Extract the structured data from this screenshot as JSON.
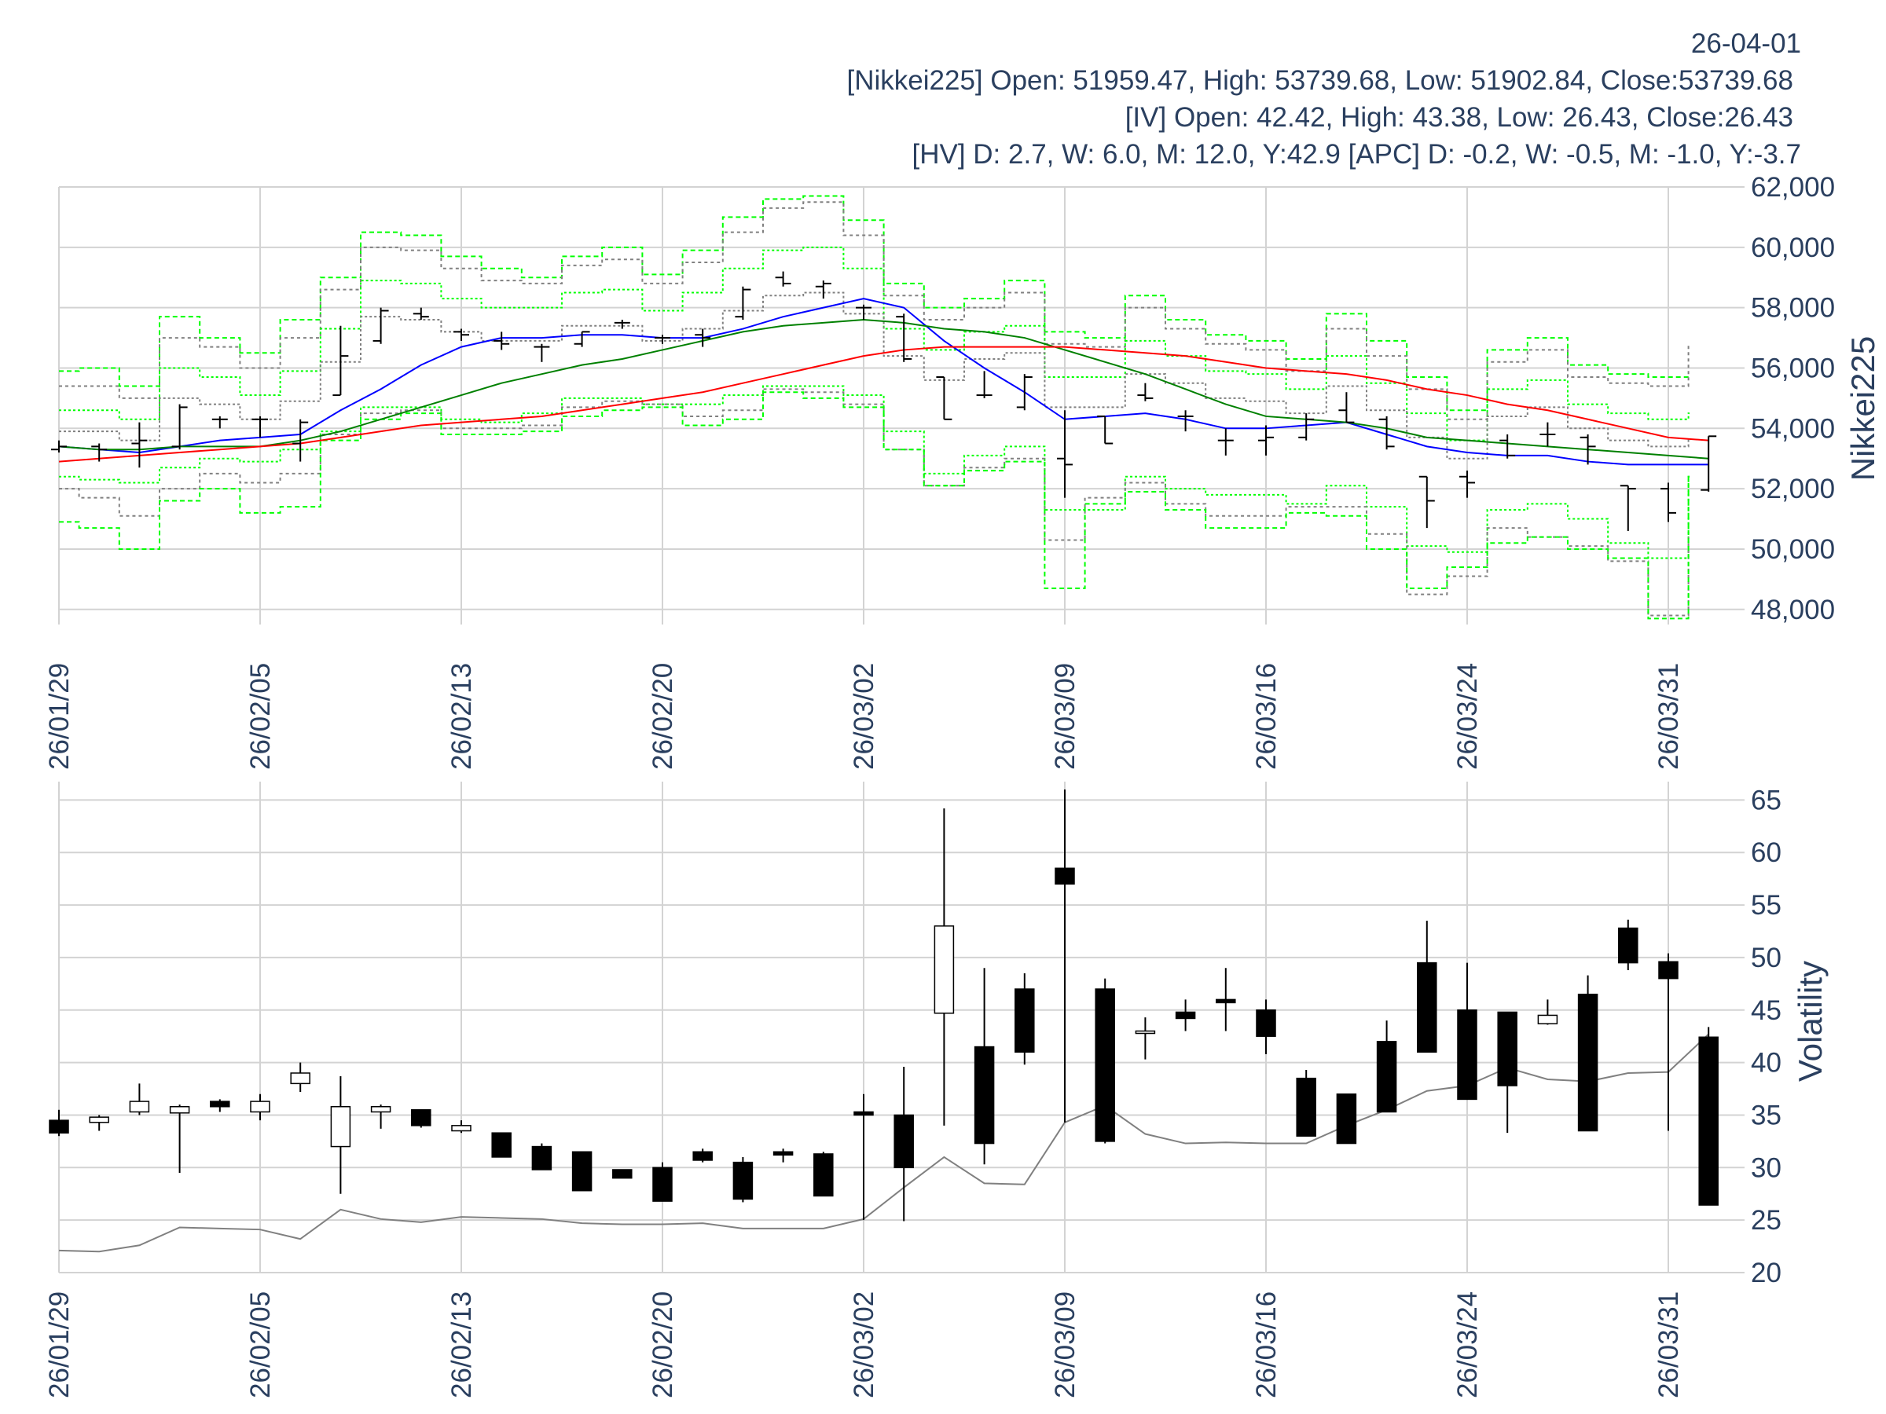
{
  "header": {
    "date": "26-04-01",
    "nikkei_line": "[Nikkei225] Open: 51959.47, High: 53739.68, Low: 51902.84, Close:53739.68",
    "iv_line": "[IV] Open: 42.42, High: 43.38, Low: 26.43, Close:26.43",
    "hv_line": "[HV] D: 2.7, W: 6.0, M: 12.0, Y:42.9 [APC] D: -0.2, W: -0.5, M: -1.0, Y:-3.7"
  },
  "colors": {
    "grid": "#d3d3d3",
    "axis_text": "#2a3f5f",
    "ohlc": "#000000",
    "ma_short": "#0000ff",
    "ma_mid": "#008000",
    "ma_long": "#ff0000",
    "band_green": "#00ff00",
    "band_gray": "#808080",
    "hv_line": "#808080",
    "candle_up_fill": "#ffffff",
    "candle_down_fill": "#000000"
  },
  "chart_data": [
    {
      "type": "ohlc",
      "ylabel": "Nikkei225",
      "ylim": [
        47500,
        62000
      ],
      "y_ticks": [
        "48,000",
        "50,000",
        "52,000",
        "54,000",
        "56,000",
        "58,000",
        "60,000",
        "62,000"
      ],
      "y_tick_values": [
        48000,
        50000,
        52000,
        54000,
        56000,
        58000,
        60000,
        62000
      ],
      "x_tick_labels": [
        "26/01/29",
        "26/02/05",
        "26/02/13",
        "26/02/20",
        "26/03/02",
        "26/03/09",
        "26/03/16",
        "26/03/24",
        "26/03/31"
      ],
      "x_tick_index": [
        0,
        5,
        10,
        15,
        20,
        25,
        30,
        35,
        40
      ],
      "grid": true,
      "ohlc": [
        [
          53300,
          53600,
          53200,
          53400
        ],
        [
          53400,
          53500,
          52900,
          53300
        ],
        [
          53500,
          54200,
          52700,
          53600
        ],
        [
          53400,
          54800,
          53300,
          54700
        ],
        [
          54300,
          54400,
          54000,
          54300
        ],
        [
          54300,
          54400,
          53700,
          54300
        ],
        [
          53500,
          54300,
          52900,
          54200
        ],
        [
          55100,
          57400,
          55100,
          56400
        ],
        [
          56900,
          58000,
          56800,
          57900
        ],
        [
          57800,
          58000,
          57600,
          57700
        ],
        [
          57200,
          57300,
          56900,
          57100
        ],
        [
          56900,
          57200,
          56600,
          56800
        ],
        [
          56700,
          56800,
          56200,
          56700
        ],
        [
          56800,
          57200,
          56700,
          57200
        ],
        [
          57500,
          57600,
          57300,
          57500
        ],
        [
          57000,
          57100,
          56800,
          57000
        ],
        [
          57100,
          57300,
          56700,
          57000
        ],
        [
          57700,
          58700,
          57600,
          58600
        ],
        [
          59000,
          59200,
          58700,
          58800
        ],
        [
          58700,
          58900,
          58300,
          58800
        ],
        [
          58000,
          58100,
          57600,
          58000
        ],
        [
          57700,
          57800,
          56200,
          56300
        ],
        [
          55700,
          55700,
          54300,
          54300
        ],
        [
          55100,
          55900,
          55000,
          55100
        ],
        [
          54700,
          55800,
          54600,
          55700
        ],
        [
          53000,
          54600,
          51700,
          52800
        ],
        [
          54400,
          54400,
          53500,
          53500
        ],
        [
          55100,
          55500,
          54900,
          55000
        ],
        [
          54400,
          54600,
          53900,
          54400
        ],
        [
          53600,
          54000,
          53100,
          53600
        ],
        [
          53600,
          54100,
          53100,
          53700
        ],
        [
          53700,
          54500,
          53600,
          54300
        ],
        [
          54600,
          55200,
          54200,
          54200
        ],
        [
          54300,
          54400,
          53300,
          53400
        ],
        [
          52400,
          52400,
          50700,
          51600
        ],
        [
          52400,
          52600,
          51700,
          52200
        ],
        [
          53600,
          53800,
          53000,
          53100
        ],
        [
          53800,
          54200,
          53400,
          53800
        ],
        [
          53700,
          53800,
          52800,
          53400
        ],
        [
          52100,
          52100,
          50600,
          52000
        ],
        [
          52000,
          52200,
          50900,
          51200
        ],
        [
          51959.47,
          53739.68,
          51902.84,
          53739.68
        ]
      ],
      "moving_averages": [
        {
          "color_key": "ma_short",
          "values": [
            53400,
            53300,
            53200,
            53400,
            53600,
            53700,
            53800,
            54600,
            55300,
            56100,
            56700,
            57000,
            57000,
            57100,
            57100,
            57000,
            57000,
            57300,
            57700,
            58000,
            58300,
            58000,
            56900,
            56000,
            55200,
            54300,
            54400,
            54500,
            54300,
            54000,
            54000,
            54100,
            54200,
            53800,
            53400,
            53200,
            53100,
            53100,
            52900,
            52800,
            52800,
            52800
          ]
        },
        {
          "color_key": "ma_mid",
          "values": [
            53400,
            53300,
            53300,
            53400,
            53400,
            53400,
            53600,
            53900,
            54300,
            54700,
            55100,
            55500,
            55800,
            56100,
            56300,
            56600,
            56900,
            57200,
            57400,
            57500,
            57600,
            57500,
            57300,
            57200,
            57000,
            56600,
            56200,
            55800,
            55300,
            54800,
            54400,
            54300,
            54200,
            54000,
            53700,
            53600,
            53500,
            53400,
            53300,
            53200,
            53100,
            53000
          ]
        },
        {
          "color_key": "ma_long",
          "values": [
            52900,
            53000,
            53100,
            53200,
            53300,
            53400,
            53500,
            53700,
            53900,
            54100,
            54200,
            54300,
            54400,
            54600,
            54800,
            55000,
            55200,
            55500,
            55800,
            56100,
            56400,
            56600,
            56700,
            56700,
            56700,
            56700,
            56600,
            56500,
            56400,
            56200,
            56000,
            55900,
            55800,
            55600,
            55300,
            55100,
            54800,
            54600,
            54300,
            54000,
            53700,
            53600
          ]
        }
      ],
      "bands": [
        {
          "color_key": "band_green",
          "dash": "6,4",
          "values": [
            55900,
            56000,
            55400,
            57700,
            57000,
            56500,
            57600,
            59000,
            60500,
            60400,
            59700,
            59300,
            59000,
            59700,
            60000,
            59100,
            59900,
            61000,
            61600,
            61700,
            60900,
            58800,
            58000,
            58300,
            58900,
            57200,
            57000,
            58400,
            57600,
            57100,
            56900,
            56300,
            57800,
            56900,
            55700,
            54600,
            56600,
            57000,
            56100,
            55800,
            55700,
            55700
          ]
        },
        {
          "color_key": "band_gray",
          "dash": "4,4",
          "values": [
            55400,
            55400,
            55000,
            57000,
            56700,
            56000,
            57000,
            58600,
            60000,
            59900,
            59300,
            58900,
            58800,
            59400,
            59600,
            58800,
            59500,
            60500,
            61300,
            61500,
            60400,
            58400,
            57600,
            58000,
            58500,
            56800,
            56700,
            58000,
            57300,
            56800,
            56600,
            55900,
            57300,
            56400,
            55300,
            54300,
            56200,
            56600,
            55700,
            55500,
            55400,
            56800
          ]
        },
        {
          "color_key": "band_green",
          "dash": "3,3",
          "values": [
            54600,
            54600,
            54300,
            56000,
            55700,
            55100,
            55900,
            57300,
            58900,
            58800,
            58300,
            58000,
            58000,
            58500,
            58600,
            57900,
            58500,
            59300,
            59900,
            60000,
            59300,
            57300,
            56600,
            57200,
            57400,
            55700,
            55700,
            56900,
            56400,
            55900,
            55800,
            55300,
            56400,
            55500,
            54500,
            53600,
            55300,
            55600,
            54800,
            54500,
            54300,
            54500
          ]
        },
        {
          "color_key": "band_gray",
          "dash": "3,3",
          "values": [
            53900,
            53900,
            53600,
            55000,
            54800,
            54300,
            54900,
            56200,
            57700,
            57600,
            57200,
            56900,
            56900,
            57400,
            57400,
            56900,
            57300,
            57900,
            58400,
            58500,
            57800,
            56400,
            55600,
            56300,
            56500,
            54700,
            54700,
            55800,
            55500,
            55000,
            54900,
            54500,
            55400,
            54600,
            53700,
            53000,
            54400,
            54700,
            54000,
            53600,
            53400,
            53600
          ]
        },
        {
          "color_key": "band_green",
          "dash": "3,3",
          "values": [
            52400,
            52300,
            52200,
            52700,
            53000,
            52900,
            53300,
            53900,
            54700,
            54700,
            54300,
            54200,
            54500,
            55000,
            55000,
            54800,
            54800,
            55100,
            55400,
            55400,
            55100,
            53900,
            52500,
            53100,
            53400,
            51300,
            51300,
            52400,
            52000,
            51800,
            51800,
            51500,
            52100,
            51400,
            50100,
            49900,
            51300,
            51500,
            51000,
            50200,
            49700,
            52400
          ]
        },
        {
          "color_key": "band_gray",
          "dash": "4,4",
          "values": [
            52000,
            51700,
            51100,
            52000,
            52500,
            52200,
            52500,
            53800,
            54500,
            54600,
            54000,
            54000,
            54100,
            54700,
            54900,
            54800,
            54400,
            54600,
            55300,
            55200,
            54800,
            53300,
            52100,
            52700,
            53000,
            50300,
            51700,
            52200,
            51500,
            51100,
            51100,
            51400,
            51400,
            50500,
            48500,
            49100,
            50700,
            50400,
            50100,
            49600,
            47800,
            50400
          ]
        },
        {
          "color_key": "band_green",
          "dash": "6,4",
          "values": [
            50900,
            50700,
            50000,
            51600,
            52000,
            51200,
            51400,
            53600,
            54300,
            54500,
            53800,
            53800,
            53900,
            54400,
            54600,
            54700,
            54100,
            54300,
            55200,
            55000,
            54700,
            53300,
            52100,
            52600,
            52900,
            48700,
            51500,
            51900,
            51300,
            50700,
            50700,
            51200,
            51100,
            50000,
            48700,
            49400,
            50200,
            50400,
            50000,
            49700,
            47700,
            52400
          ]
        }
      ]
    },
    {
      "type": "candlestick",
      "ylabel": "Volatility",
      "ylim": [
        20,
        66
      ],
      "y_ticks": [
        "20",
        "25",
        "30",
        "35",
        "40",
        "45",
        "50",
        "55",
        "60",
        "65"
      ],
      "y_tick_values": [
        20,
        25,
        30,
        35,
        40,
        45,
        50,
        55,
        60,
        65
      ],
      "x_tick_labels": [
        "26/01/29",
        "26/02/05",
        "26/02/13",
        "26/02/20",
        "26/03/02",
        "26/03/09",
        "26/03/16",
        "26/03/24",
        "26/03/31"
      ],
      "x_tick_index": [
        0,
        5,
        10,
        15,
        20,
        25,
        30,
        35,
        40
      ],
      "grid": true,
      "candles": [
        [
          34.5,
          35.5,
          33.0,
          33.3
        ],
        [
          34.3,
          35.0,
          33.5,
          34.8
        ],
        [
          35.3,
          38.0,
          35.0,
          36.3
        ],
        [
          35.2,
          36.0,
          29.5,
          35.8
        ],
        [
          36.3,
          36.5,
          35.3,
          35.8
        ],
        [
          35.3,
          37.0,
          34.5,
          36.3
        ],
        [
          38.0,
          40.0,
          37.2,
          39.0
        ],
        [
          32.0,
          38.7,
          27.5,
          35.8
        ],
        [
          35.3,
          36.0,
          33.7,
          35.8
        ],
        [
          35.5,
          35.5,
          33.8,
          34.0
        ],
        [
          33.5,
          34.5,
          33.3,
          34.0
        ],
        [
          33.3,
          33.3,
          31.0,
          31.0
        ],
        [
          32.0,
          32.3,
          29.8,
          29.8
        ],
        [
          31.5,
          31.5,
          27.8,
          27.8
        ],
        [
          29.8,
          29.8,
          29.0,
          29.0
        ],
        [
          30.0,
          30.5,
          26.8,
          26.8
        ],
        [
          31.5,
          31.8,
          30.5,
          30.7
        ],
        [
          30.5,
          31.0,
          26.7,
          27.0
        ],
        [
          31.5,
          31.8,
          30.5,
          31.2
        ],
        [
          31.3,
          31.5,
          27.3,
          27.3
        ],
        [
          35.3,
          37.0,
          25.0,
          35.0
        ],
        [
          35.0,
          39.6,
          24.9,
          30.0
        ],
        [
          44.7,
          64.2,
          34.0,
          53.0
        ],
        [
          41.5,
          49.0,
          30.3,
          32.3
        ],
        [
          47.0,
          48.5,
          39.8,
          41.0
        ],
        [
          58.5,
          66.0,
          34.3,
          57.0
        ],
        [
          47.0,
          48.0,
          32.3,
          32.5
        ],
        [
          42.8,
          44.3,
          40.3,
          43.0
        ],
        [
          44.8,
          46.0,
          43.0,
          44.2
        ],
        [
          46.0,
          49.0,
          43.0,
          45.7
        ],
        [
          45.0,
          46.0,
          40.8,
          42.5
        ],
        [
          38.5,
          39.3,
          33.0,
          33.0
        ],
        [
          37.0,
          37.0,
          32.3,
          32.3
        ],
        [
          42.0,
          44.0,
          35.3,
          35.3
        ],
        [
          49.5,
          53.5,
          41.0,
          41.0
        ],
        [
          45.0,
          49.5,
          36.5,
          36.5
        ],
        [
          44.8,
          44.8,
          33.3,
          37.8
        ],
        [
          43.7,
          46.0,
          43.6,
          44.5
        ],
        [
          46.5,
          48.3,
          33.5,
          33.5
        ],
        [
          52.8,
          53.6,
          48.8,
          49.5
        ],
        [
          49.6,
          50.4,
          33.5,
          48.0
        ],
        [
          42.42,
          43.38,
          26.43,
          26.43
        ]
      ],
      "hv": [
        22.1,
        22.0,
        22.6,
        24.3,
        24.2,
        24.1,
        23.2,
        26.0,
        25.1,
        24.8,
        25.3,
        25.2,
        25.1,
        24.7,
        24.6,
        24.6,
        24.7,
        24.2,
        24.2,
        24.2,
        25.1,
        28.1,
        31.0,
        28.5,
        28.4,
        34.3,
        35.9,
        33.2,
        32.3,
        32.4,
        32.3,
        32.3,
        34.0,
        35.5,
        37.3,
        37.8,
        39.5,
        38.4,
        38.2,
        39.0,
        39.1,
        42.7
      ]
    }
  ]
}
